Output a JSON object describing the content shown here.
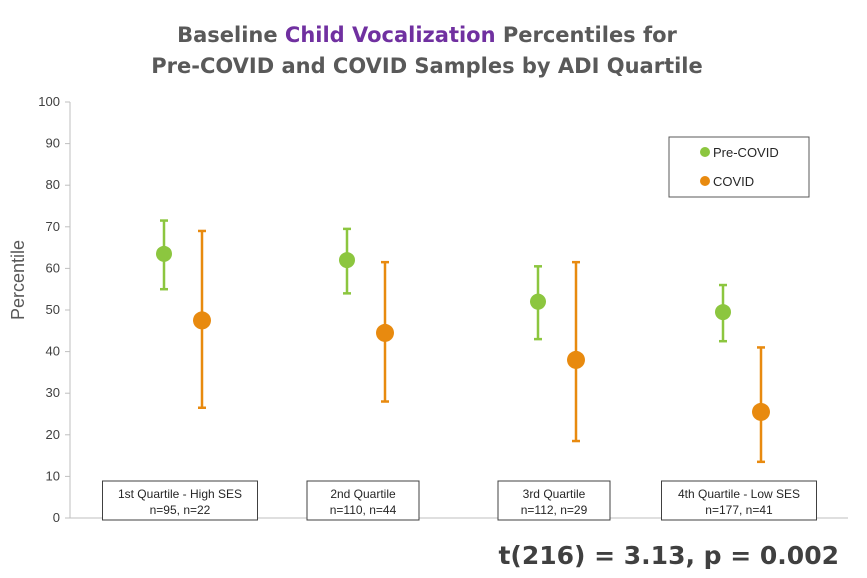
{
  "chart_data": {
    "type": "scatter",
    "title": {
      "line1_before": "Baseline ",
      "line1_accent": "Child Vocalization",
      "line1_after": " Percentiles for",
      "line2": "Pre-COVID and COVID Samples by ADI Quartile",
      "accent_color": "#7030a0"
    },
    "ylabel": "Percentile",
    "xlabel": "",
    "ylim": [
      0,
      100
    ],
    "yticks": [
      0,
      10,
      20,
      30,
      40,
      50,
      60,
      70,
      80,
      90,
      100
    ],
    "grid": false,
    "legend_position": "top-right",
    "categories": [
      {
        "line1": "1st Quartile - High SES",
        "line2": "n=95, n=22"
      },
      {
        "line1": "2nd Quartile",
        "line2": "n=110, n=44"
      },
      {
        "line1": "3rd Quartile",
        "line2": "n=112, n=29"
      },
      {
        "line1": "4th Quartile - Low SES",
        "line2": "n=177, n=41"
      }
    ],
    "series": [
      {
        "name": "Pre-COVID",
        "color": "#8cc63f",
        "values": [
          63.5,
          62,
          52,
          49.5
        ],
        "error_low": [
          55,
          54,
          43,
          42.5
        ],
        "error_high": [
          71.5,
          69.5,
          60.5,
          56
        ]
      },
      {
        "name": "COVID",
        "color": "#e88a0f",
        "values": [
          47.5,
          44.5,
          38,
          25.5
        ],
        "error_low": [
          26.5,
          28,
          18.5,
          13.5
        ],
        "error_high": [
          69,
          61.5,
          61.5,
          41
        ]
      }
    ],
    "annotation": "t(216) = 3.13, p = 0.002"
  }
}
